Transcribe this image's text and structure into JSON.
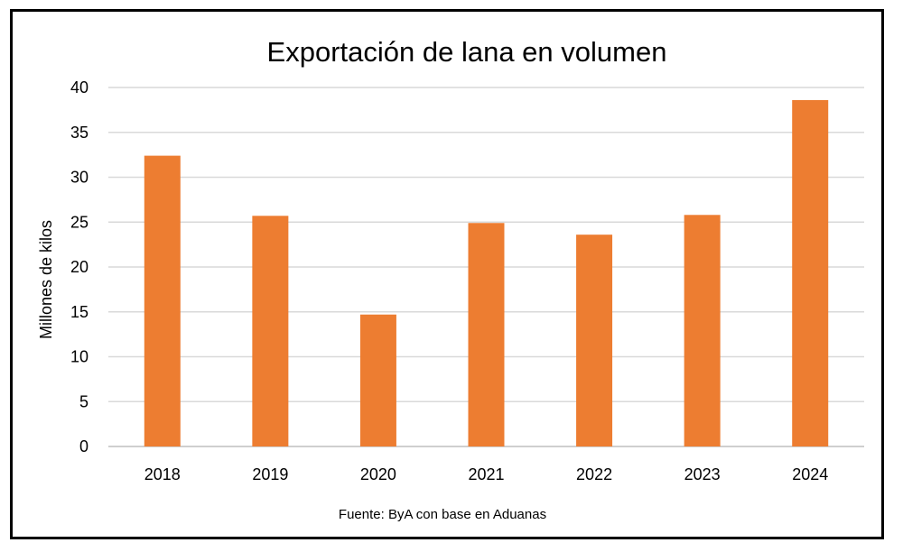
{
  "chart_data": {
    "type": "bar",
    "title": "Exportación de lana en volumen",
    "xlabel": "",
    "ylabel": "Millones de kilos",
    "categories": [
      "2018",
      "2019",
      "2020",
      "2021",
      "2022",
      "2023",
      "2024"
    ],
    "values": [
      32.4,
      25.7,
      14.7,
      24.9,
      23.6,
      25.8,
      38.6
    ],
    "ylim": [
      0,
      40
    ],
    "yticks": [
      0,
      5,
      10,
      15,
      20,
      25,
      30,
      35,
      40
    ],
    "grid": true,
    "legend": "none",
    "bar_color": "#ED7D31",
    "source": "Fuente: ByA con base en Aduanas"
  }
}
